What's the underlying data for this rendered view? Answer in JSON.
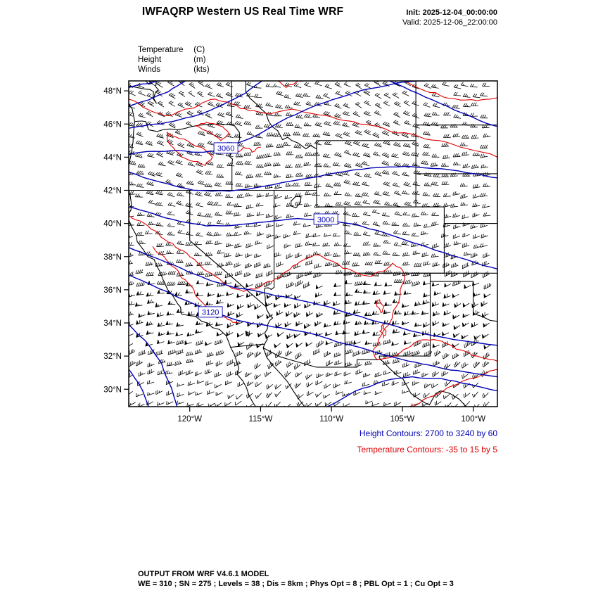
{
  "header": {
    "title": "IWFAQRP Western US Real Time WRF",
    "init": "Init: 2025-12-04_00:00:00",
    "valid": "Valid: 2025-12-06_22:00:00"
  },
  "legend": {
    "items": [
      {
        "name": "Temperature",
        "unit": "(C)"
      },
      {
        "name": "Height",
        "unit": "(m)"
      },
      {
        "name": "Winds",
        "unit": "(kts)"
      }
    ]
  },
  "notes": {
    "height": "Height Contours: 2700 to 3240 by 60",
    "temperature": "Temperature Contours: -35 to 15 by 5"
  },
  "footer": {
    "line1": "OUTPUT FROM WRF V4.6.1 MODEL",
    "line2": "WE = 310 ; SN = 275 ; Levels = 38 ; Dis = 8km ; Phys Opt = 8 ; PBL Opt = 1 ; Cu Opt = 3"
  },
  "chart_data": {
    "type": "contour-map",
    "region": "Western United States",
    "lat_range": [
      28.95,
      48.6
    ],
    "lon_range": [
      -124.3,
      -98.3
    ],
    "lat_ticks": [
      {
        "value": 48,
        "label": "48°N"
      },
      {
        "value": 46,
        "label": "46°N"
      },
      {
        "value": 44,
        "label": "44°N"
      },
      {
        "value": 42,
        "label": "42°N"
      },
      {
        "value": 40,
        "label": "40°N"
      },
      {
        "value": 38,
        "label": "38°N"
      },
      {
        "value": 36,
        "label": "36°N"
      },
      {
        "value": 34,
        "label": "34°N"
      },
      {
        "value": 32,
        "label": "32°N"
      },
      {
        "value": 30,
        "label": "30°N"
      }
    ],
    "lon_ticks": [
      {
        "value": -120,
        "label": "120°W"
      },
      {
        "value": -115,
        "label": "115°W"
      },
      {
        "value": -110,
        "label": "110°W"
      },
      {
        "value": -105,
        "label": "105°W"
      },
      {
        "value": -100,
        "label": "100°W"
      }
    ],
    "height_contours": {
      "min": 2700,
      "max": 3240,
      "interval": 60,
      "color": "#0000b6",
      "labels": [
        {
          "value": "3060",
          "lon": -117.45,
          "lat": 44.53
        },
        {
          "value": "3000",
          "lon": -110.4,
          "lat": 40.24
        },
        {
          "value": "3120",
          "lon": -118.54,
          "lat": 34.64
        }
      ]
    },
    "temperature_contours": {
      "min": -35,
      "max": 15,
      "interval": 5,
      "color": "#e00000"
    },
    "winds": {
      "units": "kts",
      "color": "#000000"
    },
    "map_outline_color": "#000000"
  }
}
